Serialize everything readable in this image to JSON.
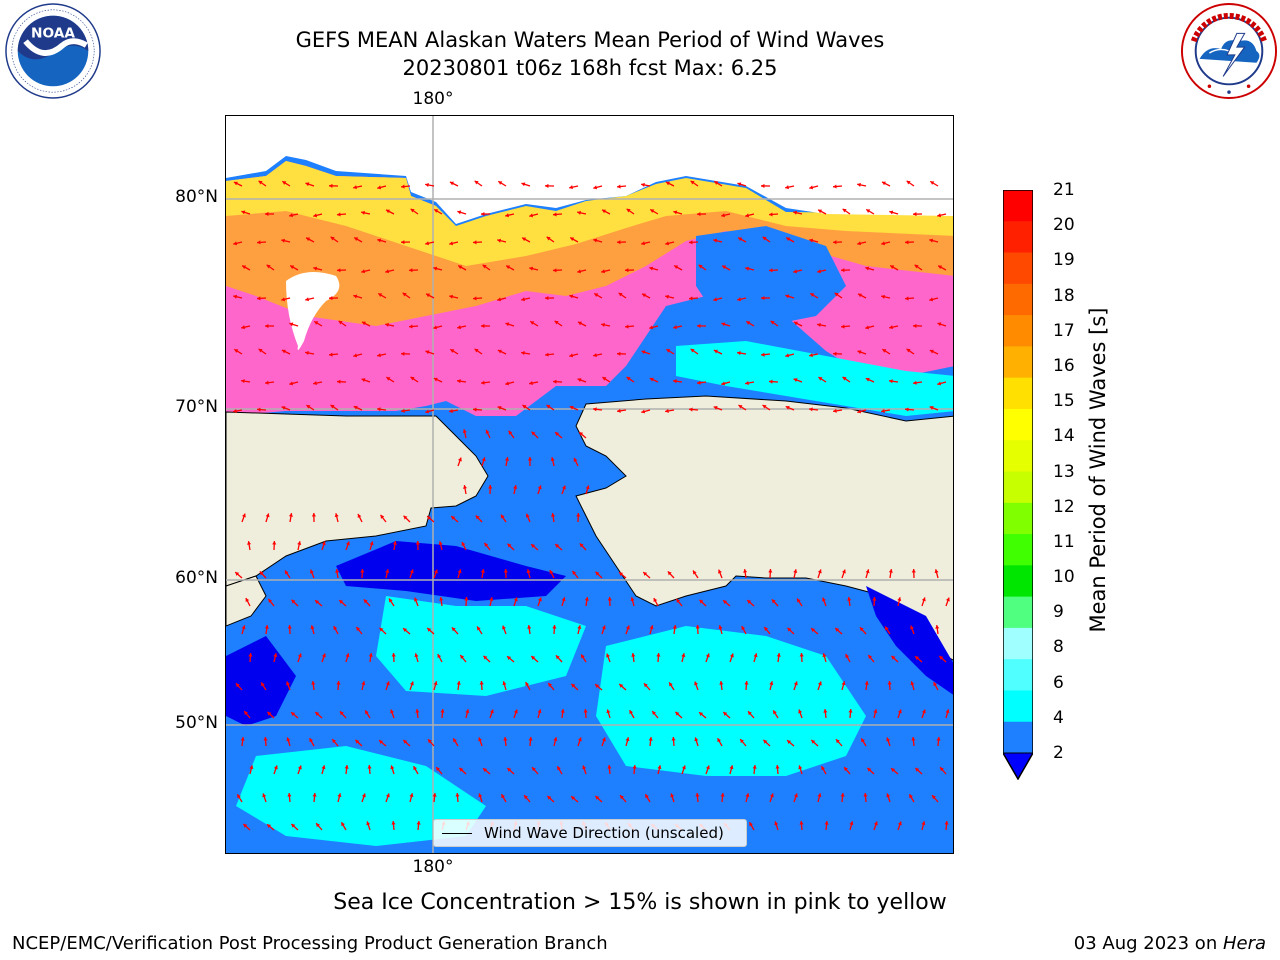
{
  "title": {
    "line1": "GEFS MEAN Alaskan Waters Mean Period of Wind Waves",
    "line2": "20230801 t06z 168h fcst   Max: 6.25"
  },
  "logos": {
    "noaa_text": "NOAA",
    "noaa_ring_text": "NATIONAL OCEANIC AND ATMOSPHERIC ADMINISTRATION",
    "noaa_ring_bottom": "U.S. DEPARTMENT OF COMMERCE",
    "nws_ring_text": "NATIONAL WEATHER SERVICE"
  },
  "map": {
    "lat_labels": [
      "80°N",
      "70°N",
      "60°N",
      "50°N"
    ],
    "lon_top": "180°",
    "lon_bottom": "180°",
    "legend": "Wind Wave Direction (unscaled)",
    "colors": {
      "land": "#efeedd",
      "ice_pink": "#ff66cc",
      "ice_orange": "#ffa040",
      "ice_yellow": "#ffe040",
      "wave_blue": "#1e80ff",
      "wave_cyan": "#00ffff",
      "wave_dark": "#0000ee",
      "arrow": "#ff0000",
      "grid": "#b0b0b0"
    }
  },
  "colorbar": {
    "label": "Mean Period of Wind Waves [s]",
    "ticks": [
      "21",
      "20",
      "19",
      "18",
      "17",
      "16",
      "15",
      "14",
      "13",
      "12",
      "11",
      "10",
      "9",
      "8",
      "6",
      "4",
      "2"
    ],
    "colors": [
      "#ff0000",
      "#ff2000",
      "#ff4800",
      "#ff6a00",
      "#ff8c00",
      "#ffb000",
      "#ffe000",
      "#ffff00",
      "#e6ff00",
      "#c8ff00",
      "#80ff00",
      "#40ff00",
      "#00e600",
      "#50ff80",
      "#a0ffff",
      "#50ffff",
      "#00ffff",
      "#1e80ff"
    ],
    "extend_color": "#0000ff"
  },
  "caption": "Sea Ice Concentration > 15% is shown in pink to yellow",
  "footer": {
    "left": "NCEP/EMC/Verification Post Processing Product Generation Branch",
    "right_date": "03 Aug 2023 on ",
    "right_host": "Hera"
  }
}
